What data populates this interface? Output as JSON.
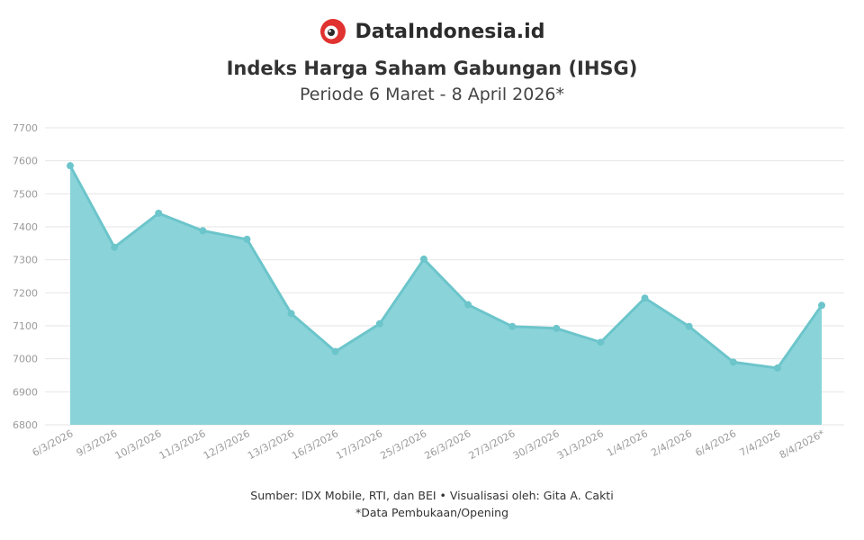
{
  "brand": {
    "name": "DataIndonesia.id",
    "logo_icon": "dataindonesia-logo-icon",
    "logo_color": "#e0322f"
  },
  "chart_data": {
    "type": "area",
    "title": "Indeks Harga Saham Gabungan (IHSG)",
    "subtitle": "Periode 6 Maret - 8 April 2026*",
    "xlabel": "",
    "ylabel": "",
    "ylim": [
      6800,
      7700
    ],
    "yticks": [
      6800,
      6900,
      7000,
      7100,
      7200,
      7300,
      7400,
      7500,
      7600,
      7700
    ],
    "grid": true,
    "categories": [
      "6/3/2026",
      "9/3/2026",
      "10/3/2026",
      "11/3/2026",
      "12/3/2026",
      "13/3/2026",
      "16/3/2026",
      "17/3/2026",
      "25/3/2026",
      "26/3/2026",
      "27/3/2026",
      "30/3/2026",
      "31/3/2026",
      "1/4/2026",
      "2/4/2026",
      "6/4/2026",
      "7/4/2026",
      "8/4/2026*"
    ],
    "values": [
      7585,
      7338,
      7441,
      7388,
      7362,
      7137,
      7022,
      7106,
      7302,
      7164,
      7098,
      7092,
      7050,
      7184,
      7098,
      6990,
      6972,
      7162
    ],
    "colors": {
      "line": "#6cc5cb",
      "fill": "#8ad4d9",
      "grid": "#e6e6e6"
    }
  },
  "footer": {
    "source": "Sumber: IDX Mobile, RTI, dan BEI • Visualisasi oleh: Gita A. Cakti",
    "note": "*Data Pembukaan/Opening"
  }
}
